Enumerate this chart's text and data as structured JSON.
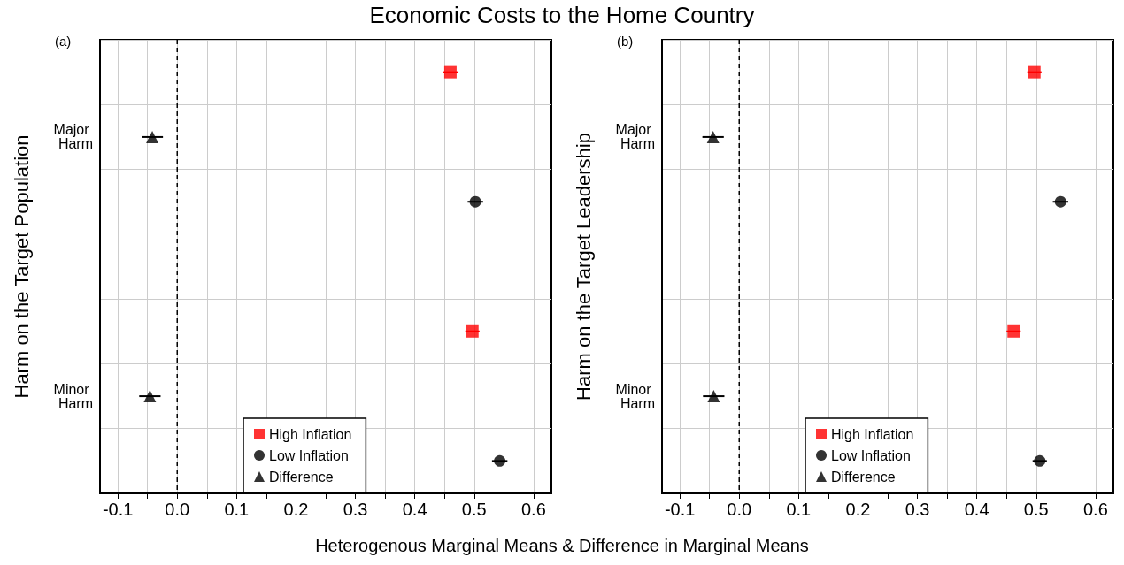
{
  "chart_data": [
    {
      "type": "scatter",
      "title": "Economic Costs to the Home Country",
      "xlabel": "Heterogenous Marginal Means & Difference in Marginal Means",
      "ylabel": "Harm on the Target Population",
      "annotations": [
        "(a)"
      ],
      "orientation": "horizontal",
      "categories": [
        null,
        "Major Harm",
        null,
        null,
        null,
        "Minor Harm",
        null
      ],
      "series": [
        {
          "name": "High Inflation",
          "color": "#ff0000",
          "marker": "square",
          "values": [
            0.46,
            null,
            null,
            null,
            0.497,
            null,
            null
          ],
          "errors": [
            0.013,
            null,
            null,
            null,
            0.012,
            null,
            null
          ]
        },
        {
          "name": "Low Inflation",
          "color": "#000000",
          "marker": "circle",
          "values": [
            null,
            null,
            0.502,
            null,
            null,
            null,
            0.543
          ],
          "errors": [
            null,
            null,
            0.013,
            null,
            null,
            null,
            0.013
          ]
        },
        {
          "name": "Difference",
          "color": "#000000",
          "marker": "triangle",
          "values": [
            null,
            -0.042,
            null,
            null,
            null,
            -0.046,
            null
          ],
          "errors": [
            null,
            0.018,
            null,
            null,
            null,
            0.018,
            null
          ]
        }
      ],
      "xlim": [
        -0.13,
        0.63
      ],
      "xticks": [
        -0.1,
        {
          "value": -0.05,
          "label": null
        },
        {
          "value": 0,
          "label": "0.0"
        },
        {
          "value": 0.05,
          "label": null
        },
        0.1,
        {
          "value": 0.15,
          "label": null
        },
        0.2,
        {
          "value": 0.25,
          "label": null
        },
        0.3,
        {
          "value": 0.35,
          "label": null
        },
        0.4,
        {
          "value": 0.45,
          "label": null
        },
        0.5,
        {
          "value": 0.55,
          "label": null
        },
        0.6
      ],
      "ref_lines": [
        {
          "axis": "x",
          "value": 0,
          "color": "#000000",
          "line_style": "dashed"
        }
      ],
      "grid": true,
      "legend": "bottom"
    },
    {
      "type": "scatter",
      "ylabel": "Harm on the Target Leadership",
      "annotations": [
        "(b)"
      ],
      "orientation": "horizontal",
      "categories": [
        null,
        "Major Harm",
        null,
        null,
        null,
        "Minor Harm",
        null
      ],
      "series": [
        {
          "name": "High Inflation",
          "color": "#ff0000",
          "marker": "square",
          "values": [
            0.497,
            null,
            null,
            null,
            0.462,
            null,
            null
          ],
          "errors": [
            0.012,
            null,
            null,
            null,
            0.012,
            null,
            null
          ]
        },
        {
          "name": "Low Inflation",
          "color": "#000000",
          "marker": "circle",
          "values": [
            null,
            null,
            0.541,
            null,
            null,
            null,
            0.506
          ],
          "errors": [
            null,
            null,
            0.013,
            null,
            null,
            null,
            0.012
          ]
        },
        {
          "name": "Difference",
          "color": "#000000",
          "marker": "triangle",
          "values": [
            null,
            -0.044,
            null,
            null,
            null,
            -0.043,
            null
          ],
          "errors": [
            null,
            0.018,
            null,
            null,
            null,
            0.018,
            null
          ]
        }
      ],
      "xlim": [
        -0.13,
        0.63
      ],
      "xticks": [
        -0.1,
        {
          "value": -0.05,
          "label": null
        },
        {
          "value": 0,
          "label": "0.0"
        },
        {
          "value": 0.05,
          "label": null
        },
        0.1,
        {
          "value": 0.15,
          "label": null
        },
        0.2,
        {
          "value": 0.25,
          "label": null
        },
        0.3,
        {
          "value": 0.35,
          "label": null
        },
        0.4,
        {
          "value": 0.45,
          "label": null
        },
        0.5,
        {
          "value": 0.55,
          "label": null
        },
        0.6
      ],
      "ref_lines": [
        {
          "axis": "x",
          "value": 0,
          "color": "#000000",
          "line_style": "dashed"
        }
      ],
      "grid": true,
      "legend": "bottom"
    }
  ]
}
